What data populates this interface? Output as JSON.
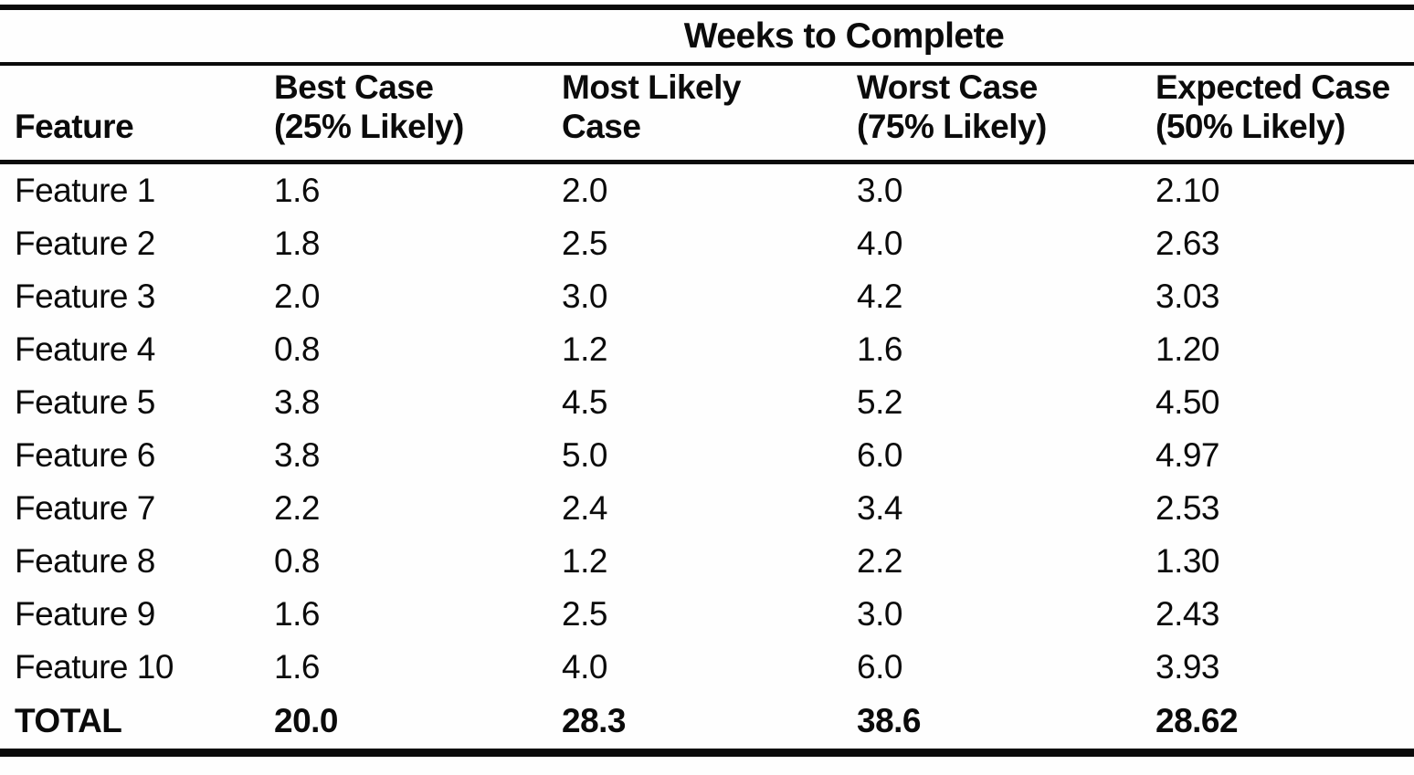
{
  "table": {
    "spanning_header": "Weeks to Complete",
    "columns": {
      "feature": {
        "label": "Feature"
      },
      "best": {
        "label": "Best Case",
        "sublabel": "(25% Likely)"
      },
      "most_likely": {
        "label": "Most Likely",
        "sublabel": "Case"
      },
      "worst": {
        "label": "Worst Case",
        "sublabel": "(75% Likely)"
      },
      "expected": {
        "label": "Expected Case",
        "sublabel": "(50% Likely)"
      }
    },
    "rows": [
      [
        "Feature 1",
        "1.6",
        "2.0",
        "3.0",
        "2.10"
      ],
      [
        "Feature 2",
        "1.8",
        "2.5",
        "4.0",
        "2.63"
      ],
      [
        "Feature 3",
        "2.0",
        "3.0",
        "4.2",
        "3.03"
      ],
      [
        "Feature 4",
        "0.8",
        "1.2",
        "1.6",
        "1.20"
      ],
      [
        "Feature 5",
        "3.8",
        "4.5",
        "5.2",
        "4.50"
      ],
      [
        "Feature 6",
        "3.8",
        "5.0",
        "6.0",
        "4.97"
      ],
      [
        "Feature 7",
        "2.2",
        "2.4",
        "3.4",
        "2.53"
      ],
      [
        "Feature 8",
        "0.8",
        "1.2",
        "2.2",
        "1.30"
      ],
      [
        "Feature 9",
        "1.6",
        "2.5",
        "3.0",
        "2.43"
      ],
      [
        "Feature 10",
        "1.6",
        "4.0",
        "6.0",
        "3.93"
      ]
    ],
    "total_row": [
      "TOTAL",
      "20.0",
      "28.3",
      "38.6",
      "28.62"
    ],
    "colors": {
      "ink": "#0b0b0b",
      "paper": "#fefefe"
    }
  }
}
